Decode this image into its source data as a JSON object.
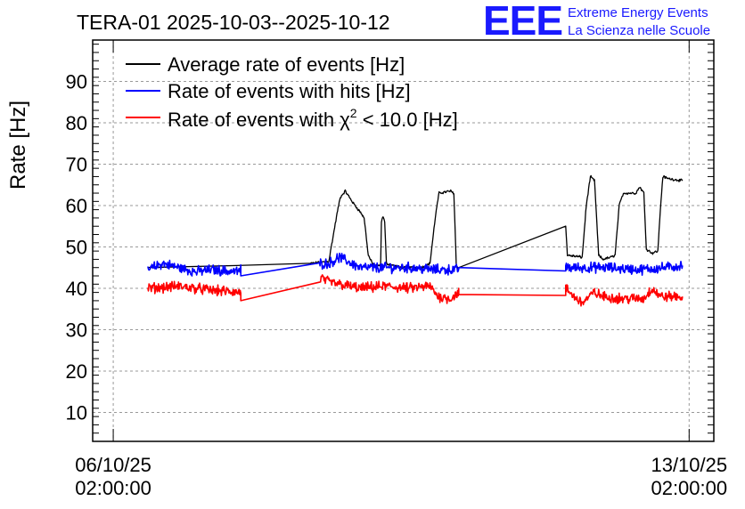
{
  "chart_data": {
    "type": "line",
    "title": "TERA-01 2025-10-03--2025-10-12",
    "ylabel": "Rate [Hz]",
    "xlabel": "",
    "ylim": [
      3,
      100
    ],
    "yticks": [
      10,
      20,
      30,
      40,
      50,
      60,
      70,
      80,
      90
    ],
    "xlim_days": [
      -0.25,
      7.3
    ],
    "xticks": [
      {
        "t": 0,
        "line1": "06/10/25",
        "line2": "02:00:00"
      },
      {
        "t": 7,
        "line1": "13/10/25",
        "line2": "02:00:00"
      }
    ],
    "grid": true,
    "legend_position": "top-left",
    "series": [
      {
        "name": "Average rate of events [Hz]",
        "legend_parts": [
          "Average rate of events [Hz]"
        ],
        "color": "#000000",
        "noise": 0.25,
        "points": [
          [
            0.42,
            45
          ],
          [
            1.5,
            45.5
          ],
          [
            2.4,
            46
          ],
          [
            2.62,
            46.5
          ],
          [
            2.72,
            58
          ],
          [
            2.76,
            62
          ],
          [
            2.82,
            63.5
          ],
          [
            2.92,
            60.5
          ],
          [
            3.0,
            58.5
          ],
          [
            3.05,
            57
          ],
          [
            3.1,
            48
          ],
          [
            3.15,
            46
          ],
          [
            3.2,
            45.5
          ],
          [
            3.25,
            45.5
          ],
          [
            3.26,
            56
          ],
          [
            3.28,
            57.5
          ],
          [
            3.3,
            56
          ],
          [
            3.32,
            46
          ],
          [
            3.5,
            45
          ],
          [
            3.75,
            45
          ],
          [
            3.85,
            46
          ],
          [
            3.92,
            58
          ],
          [
            3.96,
            63
          ],
          [
            4.1,
            63.5
          ],
          [
            4.14,
            63
          ],
          [
            4.17,
            45.5
          ],
          [
            4.2,
            45
          ],
          [
            5.5,
            55
          ],
          [
            5.52,
            48
          ],
          [
            5.7,
            47.5
          ],
          [
            5.75,
            60
          ],
          [
            5.8,
            67
          ],
          [
            5.85,
            66
          ],
          [
            5.9,
            48
          ],
          [
            5.95,
            47
          ],
          [
            6.05,
            47.5
          ],
          [
            6.1,
            48
          ],
          [
            6.15,
            60
          ],
          [
            6.2,
            63
          ],
          [
            6.35,
            63
          ],
          [
            6.4,
            64.5
          ],
          [
            6.45,
            63
          ],
          [
            6.48,
            49.5
          ],
          [
            6.55,
            48.5
          ],
          [
            6.62,
            49
          ],
          [
            6.65,
            59
          ],
          [
            6.68,
            67
          ],
          [
            6.75,
            66.5
          ],
          [
            6.92,
            66
          ]
        ]
      },
      {
        "name": "Rate of events with hits [Hz]",
        "legend_parts": [
          "Rate of events with hits [Hz]"
        ],
        "color": "#0000ff",
        "noise": 1.0,
        "points": [
          [
            0.42,
            44.5
          ],
          [
            0.6,
            46
          ],
          [
            0.8,
            45
          ],
          [
            1.0,
            44
          ],
          [
            1.2,
            44.5
          ],
          [
            1.5,
            44
          ],
          [
            1.55,
            44.5
          ],
          [
            1.55,
            43
          ],
          [
            2.5,
            46
          ],
          [
            2.52,
            46
          ],
          [
            2.62,
            46
          ],
          [
            2.75,
            47.5
          ],
          [
            2.85,
            46.5
          ],
          [
            3.0,
            45
          ],
          [
            3.3,
            45
          ],
          [
            3.6,
            45
          ],
          [
            3.9,
            44.5
          ],
          [
            4.2,
            44.5
          ],
          [
            4.2,
            45
          ],
          [
            5.5,
            45
          ],
          [
            5.5,
            45
          ],
          [
            6.0,
            45
          ],
          [
            6.4,
            44.5
          ],
          [
            6.7,
            45
          ],
          [
            6.92,
            45.5
          ]
        ]
      },
      {
        "name": "Rate of events with χ² < 10.0 [Hz]",
        "legend_parts": [
          "Rate of events with ",
          "χ",
          "2",
          " < 10.0 [Hz]"
        ],
        "color": "#ff0000",
        "noise": 1.0,
        "points": [
          [
            0.42,
            40
          ],
          [
            0.8,
            40.5
          ],
          [
            1.2,
            39.5
          ],
          [
            1.55,
            39
          ],
          [
            1.55,
            37
          ],
          [
            2.52,
            42.5
          ],
          [
            2.62,
            41.5
          ],
          [
            3.0,
            40
          ],
          [
            3.3,
            40.5
          ],
          [
            3.6,
            40
          ],
          [
            3.85,
            40.5
          ],
          [
            3.95,
            38
          ],
          [
            4.1,
            37.5
          ],
          [
            4.2,
            39
          ],
          [
            4.2,
            38.5
          ],
          [
            5.5,
            38
          ],
          [
            5.5,
            40
          ],
          [
            5.6,
            38
          ],
          [
            5.7,
            36.5
          ],
          [
            5.85,
            39
          ],
          [
            5.95,
            38
          ],
          [
            6.2,
            37.5
          ],
          [
            6.45,
            37.5
          ],
          [
            6.55,
            40
          ],
          [
            6.65,
            38
          ],
          [
            6.92,
            38
          ]
        ]
      }
    ]
  },
  "logo": {
    "mark": "EEE",
    "line1": "Extreme Energy Events",
    "line2": "La Scienza nelle Scuole",
    "color": "#1a1aff"
  }
}
